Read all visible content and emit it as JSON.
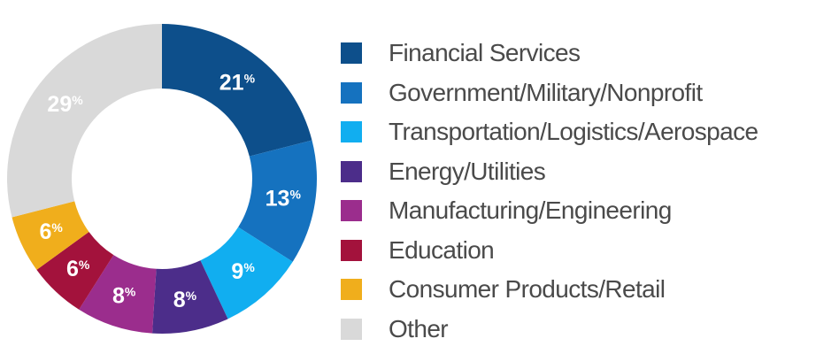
{
  "chart_data": {
    "type": "pie",
    "categories": [
      "Financial Services",
      "Government/Military/Nonprofit",
      "Transportation/Logistics/Aerospace",
      "Energy/Utilities",
      "Manufacturing/Engineering",
      "Education",
      "Consumer Products/Retail",
      "Other"
    ],
    "values": [
      21,
      13,
      9,
      8,
      8,
      6,
      6,
      29
    ],
    "value_labels": [
      "21%",
      "13%",
      "9%",
      "8%",
      "8%",
      "6%",
      "6%",
      "29%"
    ],
    "colors": [
      "#0d4f8b",
      "#1572bf",
      "#11aef0",
      "#4c2d8a",
      "#9b2d8d",
      "#a3123c",
      "#f0ae1c",
      "#d9d9d9"
    ],
    "donut": true,
    "legend_position": "right",
    "title": "",
    "xlabel": "",
    "ylabel": ""
  }
}
